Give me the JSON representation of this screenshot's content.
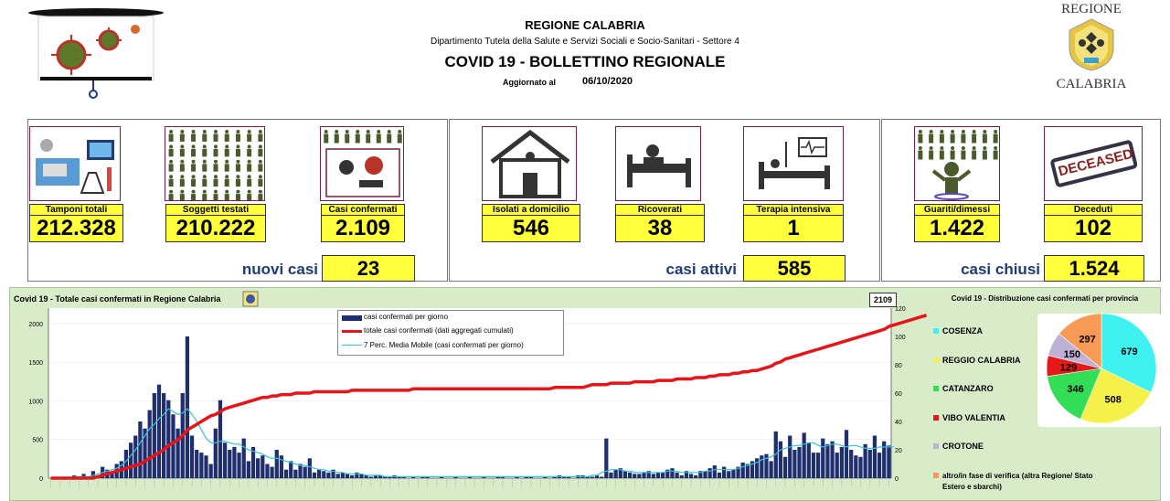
{
  "header": {
    "region": "REGIONE CALABRIA",
    "department": "Dipartimento Tutela della Salute e Servizi Sociali e Socio-Sanitari - Settore 4",
    "title": "COVID 19 - BOLLETTINO REGIONALE",
    "updated_label": "Aggiornato al",
    "updated_date": "06/10/2020",
    "logo_top": "REGIONE",
    "logo_bottom": "CALABRIA"
  },
  "stats": {
    "tamponi": {
      "label": "Tamponi totali",
      "value": "212.328"
    },
    "soggetti": {
      "label": "Soggetti testati",
      "value": "210.222"
    },
    "confermati": {
      "label": "Casi confermati",
      "value": "2.109"
    },
    "isolati": {
      "label": "Isolati a domicilio",
      "value": "546"
    },
    "ricoverati": {
      "label": "Ricoverati",
      "value": "38"
    },
    "terapia": {
      "label": "Terapia intensiva",
      "value": "1"
    },
    "guariti": {
      "label": "Guariti/dimessi",
      "value": "1.422"
    },
    "deceduti": {
      "label": "Deceduti",
      "value": "102"
    },
    "deceased_stamp": "DECEASED"
  },
  "summary": {
    "nuovi_label": "nuovi casi",
    "nuovi_value": "23",
    "attivi_label": "casi attivi",
    "attivi_value": "585",
    "chiusi_label": "casi chiusi",
    "chiusi_value": "1.524"
  },
  "colors": {
    "bar": "#1f2f6e",
    "total": "#e8141a",
    "ma": "#35c2dc",
    "yellow": "#ffff3c",
    "panel_green": "#d9ecc9"
  },
  "chart_data": [
    {
      "type": "bar",
      "title": "Covid 19 - Totale casi confermati in Regione Calabria",
      "legend": [
        "casi confermati per giorno",
        "totale casi confermati (dati aggregati cumulati)",
        "7 Perc. Media Mobile (casi confermati per giorno)"
      ],
      "last_value_label": "2109",
      "left_ticks": [
        "0",
        "500",
        "1000",
        "1500",
        "2000"
      ],
      "right_ticks": [
        "0",
        "20",
        "40",
        "60",
        "80",
        "100",
        "120"
      ],
      "ylim_left": [
        0,
        2200
      ],
      "ylim_right": [
        0,
        120
      ],
      "daily_bars": [
        0,
        0,
        0,
        1,
        0,
        2,
        0,
        3,
        1,
        5,
        2,
        8,
        6,
        4,
        10,
        12,
        20,
        25,
        30,
        40,
        35,
        48,
        60,
        66,
        60,
        55,
        45,
        35,
        60,
        100,
        30,
        20,
        18,
        16,
        10,
        35,
        55,
        25,
        20,
        22,
        18,
        28,
        12,
        22,
        14,
        16,
        10,
        8,
        20,
        16,
        6,
        12,
        6,
        10,
        8,
        14,
        4,
        6,
        5,
        4,
        6,
        3,
        4,
        3,
        2,
        4,
        3,
        2,
        1,
        2,
        2,
        1,
        1,
        2,
        1,
        1,
        0,
        1,
        0,
        1,
        1,
        0,
        0,
        1,
        0,
        0,
        1,
        0,
        0,
        1,
        0,
        0,
        1,
        0,
        0,
        1,
        1,
        0,
        0,
        1,
        0,
        1,
        1,
        0,
        0,
        1,
        0,
        1,
        2,
        1,
        1,
        0,
        2,
        2,
        1,
        1,
        2,
        1,
        28,
        4,
        6,
        7,
        5,
        4,
        3,
        3,
        4,
        5,
        3,
        4,
        4,
        6,
        7,
        4,
        2,
        5,
        3,
        2,
        5,
        5,
        7,
        9,
        4,
        8,
        5,
        6,
        8,
        11,
        10,
        12,
        14,
        16,
        17,
        12,
        33,
        26,
        15,
        30,
        20,
        22,
        32,
        25,
        18,
        18,
        28,
        24,
        26,
        18,
        22,
        34,
        20,
        16,
        15,
        24,
        20,
        30,
        18,
        26,
        23
      ],
      "ma_line": [
        0,
        0,
        0,
        0,
        0,
        1,
        1,
        1,
        1,
        2,
        3,
        4,
        5,
        6,
        7,
        9,
        12,
        16,
        20,
        25,
        30,
        35,
        38,
        42,
        45,
        49,
        47,
        45,
        46,
        49,
        45,
        40,
        34,
        28,
        25,
        25,
        26,
        26,
        25,
        24,
        24,
        22,
        20,
        19,
        18,
        17,
        15,
        14,
        14,
        13,
        12,
        11,
        10,
        9,
        9,
        8,
        7,
        6,
        6,
        5,
        5,
        4,
        4,
        3,
        3,
        3,
        3,
        2,
        2,
        2,
        2,
        1,
        1,
        1,
        1,
        1,
        1,
        1,
        1,
        1,
        1,
        1,
        1,
        1,
        1,
        1,
        1,
        1,
        1,
        1,
        1,
        1,
        1,
        1,
        1,
        1,
        1,
        1,
        1,
        1,
        1,
        1,
        1,
        1,
        1,
        1,
        1,
        1,
        1,
        1,
        1,
        1,
        1,
        1,
        1,
        2,
        2,
        4,
        5,
        6,
        6,
        6,
        5,
        5,
        4,
        4,
        4,
        4,
        4,
        4,
        4,
        5,
        5,
        5,
        4,
        4,
        4,
        4,
        4,
        5,
        5,
        6,
        6,
        6,
        6,
        6,
        7,
        8,
        9,
        10,
        11,
        13,
        14,
        15,
        17,
        20,
        21,
        22,
        23,
        23,
        24,
        25,
        25,
        23,
        22,
        23,
        24,
        24,
        23,
        22,
        23,
        23,
        22,
        21,
        21,
        21,
        22,
        22,
        22,
        22
      ],
      "total_line": [
        0,
        0,
        0,
        0,
        0,
        0,
        0,
        0,
        0,
        0,
        1,
        2,
        3,
        4,
        5,
        6,
        7,
        8,
        9,
        10,
        12,
        14,
        16,
        18,
        20,
        23,
        25,
        27,
        30,
        34,
        36,
        38,
        40,
        42,
        44,
        45,
        47,
        49,
        50,
        51,
        52,
        53,
        54,
        55,
        56,
        57,
        57,
        58,
        58,
        59,
        59,
        59,
        60,
        60,
        60,
        60,
        61,
        61,
        61,
        61,
        61,
        61,
        61,
        61,
        62,
        62,
        62,
        62,
        62,
        62,
        62,
        62,
        62,
        62,
        62,
        62,
        62,
        63,
        63,
        63,
        63,
        63,
        63,
        63,
        63,
        63,
        63,
        63,
        63,
        63,
        63,
        63,
        63,
        63,
        63,
        63,
        63,
        63,
        63,
        63,
        63,
        63,
        63,
        63,
        63,
        63,
        63,
        64,
        64,
        64,
        64,
        64,
        64,
        64,
        65,
        66,
        66,
        66,
        66,
        67,
        67,
        67,
        67,
        67,
        68,
        68,
        68,
        68,
        68,
        69,
        69,
        69,
        69,
        70,
        70,
        70,
        70,
        71,
        71,
        71,
        72,
        72,
        73,
        73,
        73,
        74,
        74,
        75,
        75,
        76,
        76,
        77,
        78,
        79,
        81,
        82,
        84,
        85,
        86,
        87,
        88,
        89,
        90,
        91,
        92,
        93,
        94,
        95,
        96,
        97,
        98,
        99,
        100,
        101,
        102,
        103,
        104,
        105,
        107,
        108,
        109,
        110,
        111,
        112,
        113,
        114,
        115
      ]
    },
    {
      "type": "pie",
      "title": "Covid 19 - Distribuzione casi confermati per provincia",
      "categories": [
        "COSENZA",
        "REGGIO CALABRIA",
        "CATANZARO",
        "VIBO VALENTIA",
        "CROTONE",
        "altro/in fase di verifica (altra Regione/ Stato Estero e sbarchi)"
      ],
      "values": [
        679,
        508,
        346,
        129,
        150,
        297
      ],
      "value_labels": [
        "679",
        "508",
        "346",
        "129",
        "150",
        "297"
      ],
      "colors": [
        "#3ff2f2",
        "#f6f04a",
        "#33dd55",
        "#e61919",
        "#bfb0d6",
        "#f79a55"
      ]
    }
  ]
}
